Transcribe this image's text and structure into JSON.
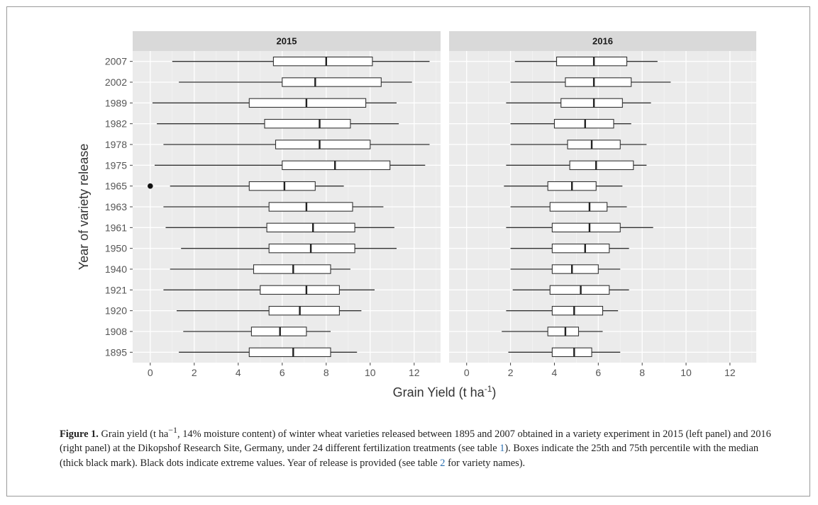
{
  "chart_data": {
    "type": "boxplot",
    "ylabel": "Year of variety release",
    "xlabel_parts": {
      "main": "Grain Yield (t ha",
      "sup": "-1",
      "end": ")"
    },
    "categories": [
      "2007",
      "2002",
      "1989",
      "1982",
      "1978",
      "1975",
      "1965",
      "1963",
      "1961",
      "1950",
      "1940",
      "1921",
      "1920",
      "1908",
      "1895"
    ],
    "xlim": [
      -0.8,
      13.2
    ],
    "xticks": [
      0,
      2,
      4,
      6,
      8,
      10,
      12
    ],
    "grid": true,
    "panels": [
      {
        "title": "2015",
        "boxes": [
          {
            "year": "2007",
            "min": 1.0,
            "q1": 5.6,
            "median": 8.0,
            "q3": 10.1,
            "max": 12.7
          },
          {
            "year": "2002",
            "min": 1.3,
            "q1": 6.0,
            "median": 7.5,
            "q3": 10.5,
            "max": 11.9
          },
          {
            "year": "1989",
            "min": 0.1,
            "q1": 4.5,
            "median": 7.1,
            "q3": 9.8,
            "max": 11.2
          },
          {
            "year": "1982",
            "min": 0.3,
            "q1": 5.2,
            "median": 7.7,
            "q3": 9.1,
            "max": 11.3
          },
          {
            "year": "1978",
            "min": 0.6,
            "q1": 5.7,
            "median": 7.7,
            "q3": 10.0,
            "max": 12.7
          },
          {
            "year": "1975",
            "min": 0.2,
            "q1": 6.0,
            "median": 8.4,
            "q3": 10.9,
            "max": 12.5
          },
          {
            "year": "1965",
            "min": 0.9,
            "q1": 4.5,
            "median": 6.1,
            "q3": 7.5,
            "max": 8.8,
            "outliers": [
              0.0
            ]
          },
          {
            "year": "1963",
            "min": 0.6,
            "q1": 5.4,
            "median": 7.1,
            "q3": 9.2,
            "max": 10.6
          },
          {
            "year": "1961",
            "min": 0.7,
            "q1": 5.3,
            "median": 7.4,
            "q3": 9.3,
            "max": 11.1
          },
          {
            "year": "1950",
            "min": 1.4,
            "q1": 5.4,
            "median": 7.3,
            "q3": 9.3,
            "max": 11.2
          },
          {
            "year": "1940",
            "min": 0.9,
            "q1": 4.7,
            "median": 6.5,
            "q3": 8.2,
            "max": 9.1
          },
          {
            "year": "1921",
            "min": 0.6,
            "q1": 5.0,
            "median": 7.1,
            "q3": 8.6,
            "max": 10.2
          },
          {
            "year": "1920",
            "min": 1.2,
            "q1": 5.4,
            "median": 6.8,
            "q3": 8.6,
            "max": 9.6
          },
          {
            "year": "1908",
            "min": 1.5,
            "q1": 4.6,
            "median": 5.9,
            "q3": 7.1,
            "max": 8.2
          },
          {
            "year": "1895",
            "min": 1.3,
            "q1": 4.5,
            "median": 6.5,
            "q3": 8.2,
            "max": 9.4
          }
        ]
      },
      {
        "title": "2016",
        "boxes": [
          {
            "year": "2007",
            "min": 2.2,
            "q1": 4.1,
            "median": 5.8,
            "q3": 7.3,
            "max": 8.7
          },
          {
            "year": "2002",
            "min": 2.0,
            "q1": 4.5,
            "median": 5.8,
            "q3": 7.5,
            "max": 9.3
          },
          {
            "year": "1989",
            "min": 1.8,
            "q1": 4.3,
            "median": 5.8,
            "q3": 7.1,
            "max": 8.4
          },
          {
            "year": "1982",
            "min": 2.0,
            "q1": 4.0,
            "median": 5.4,
            "q3": 6.7,
            "max": 7.5
          },
          {
            "year": "1978",
            "min": 2.0,
            "q1": 4.6,
            "median": 5.7,
            "q3": 7.0,
            "max": 8.2
          },
          {
            "year": "1975",
            "min": 1.8,
            "q1": 4.7,
            "median": 5.9,
            "q3": 7.6,
            "max": 8.2
          },
          {
            "year": "1965",
            "min": 1.7,
            "q1": 3.7,
            "median": 4.8,
            "q3": 5.9,
            "max": 7.1
          },
          {
            "year": "1963",
            "min": 2.0,
            "q1": 3.8,
            "median": 5.6,
            "q3": 6.4,
            "max": 7.3
          },
          {
            "year": "1961",
            "min": 1.8,
            "q1": 3.9,
            "median": 5.6,
            "q3": 7.0,
            "max": 8.5
          },
          {
            "year": "1950",
            "min": 2.0,
            "q1": 3.9,
            "median": 5.4,
            "q3": 6.5,
            "max": 7.4
          },
          {
            "year": "1940",
            "min": 2.0,
            "q1": 3.9,
            "median": 4.8,
            "q3": 6.0,
            "max": 7.0
          },
          {
            "year": "1921",
            "min": 2.1,
            "q1": 3.8,
            "median": 5.2,
            "q3": 6.5,
            "max": 7.4
          },
          {
            "year": "1920",
            "min": 1.8,
            "q1": 3.9,
            "median": 4.9,
            "q3": 6.2,
            "max": 6.9
          },
          {
            "year": "1908",
            "min": 1.6,
            "q1": 3.7,
            "median": 4.5,
            "q3": 5.1,
            "max": 6.2
          },
          {
            "year": "1895",
            "min": 1.9,
            "q1": 3.9,
            "median": 4.9,
            "q3": 5.7,
            "max": 7.0
          }
        ]
      }
    ]
  },
  "caption": {
    "label": "Figure 1.",
    "t1": " Grain yield (t ha",
    "sup": "−1",
    "t2": ", 14% moisture content) of winter wheat varieties released between 1895 and 2007 obtained in a variety experiment in 2015 (left panel) and 2016 (right panel) at the Dikopshof Research Site, Germany, under 24 different fertilization treatments (see table ",
    "ref1": "1",
    "t3": "). Boxes indicate the 25th and 75th percentile with the median (thick black mark). Black dots indicate extreme values. Year of release is provided (see table ",
    "ref2": "2",
    "t4": " for variety names)."
  }
}
